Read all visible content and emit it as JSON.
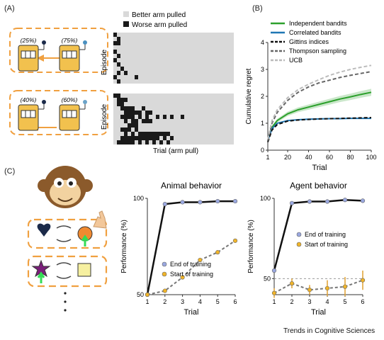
{
  "panels": {
    "a": {
      "label": "(A)",
      "legend": [
        {
          "label": "Better arm pulled",
          "color": "#d9d9d9"
        },
        {
          "label": "Worse arm pulled",
          "color": "#1a1a1a"
        }
      ],
      "bandit_top": [
        "(25%)",
        "(75%)"
      ],
      "bandit_bottom": [
        "(40%)",
        "(60%)"
      ],
      "ylabel": "Episode",
      "xlabel": "Trial (arm pull)"
    },
    "b": {
      "label": "(B)"
    },
    "c": {
      "label": "(C)"
    }
  },
  "footer": "Trends in Cognitive Sciences",
  "colors": {
    "orange": "#f0a040",
    "green_line": "#2ca02c",
    "blue_line": "#1f77b4",
    "dark_blue": "#1b2a49"
  },
  "chart_data": [
    {
      "id": "regret",
      "type": "line",
      "xlabel": "Trial",
      "ylabel": "Cumulative regret",
      "xlim": [
        1,
        100
      ],
      "ylim": [
        0,
        4
      ],
      "xticks": [
        1,
        20,
        40,
        60,
        80,
        100
      ],
      "yticks": [
        0,
        1,
        2,
        3,
        4
      ],
      "legend_position": "top-left",
      "series": [
        {
          "name": "Independent bandits",
          "color": "#2ca02c",
          "style": "solid",
          "band": true,
          "x": [
            1,
            5,
            10,
            20,
            30,
            40,
            50,
            60,
            70,
            80,
            90,
            100
          ],
          "y": [
            0.35,
            0.85,
            1.1,
            1.35,
            1.5,
            1.6,
            1.7,
            1.8,
            1.9,
            1.98,
            2.07,
            2.15
          ]
        },
        {
          "name": "Correlated bandits",
          "color": "#1f77b4",
          "style": "solid",
          "band": false,
          "x": [
            1,
            5,
            10,
            20,
            30,
            40,
            50,
            60,
            70,
            80,
            90,
            100
          ],
          "y": [
            0.35,
            0.8,
            1.0,
            1.1,
            1.13,
            1.15,
            1.16,
            1.17,
            1.17,
            1.18,
            1.18,
            1.18
          ]
        },
        {
          "name": "Gittins indices",
          "color": "#111111",
          "style": "dashed",
          "band": false,
          "x": [
            1,
            5,
            10,
            20,
            30,
            40,
            50,
            60,
            70,
            80,
            90,
            100
          ],
          "y": [
            0.3,
            0.75,
            0.95,
            1.08,
            1.12,
            1.14,
            1.16,
            1.17,
            1.18,
            1.19,
            1.2,
            1.21
          ]
        },
        {
          "name": "Thompson sampling",
          "color": "#666666",
          "style": "dashed",
          "band": false,
          "x": [
            1,
            5,
            10,
            20,
            30,
            40,
            50,
            60,
            70,
            80,
            90,
            100
          ],
          "y": [
            0.35,
            1.0,
            1.4,
            1.85,
            2.15,
            2.35,
            2.5,
            2.6,
            2.7,
            2.78,
            2.85,
            2.92
          ]
        },
        {
          "name": "UCB",
          "color": "#bbbbbb",
          "style": "dashed",
          "band": false,
          "x": [
            1,
            5,
            10,
            20,
            30,
            40,
            50,
            60,
            70,
            80,
            90,
            100
          ],
          "y": [
            0.4,
            1.1,
            1.5,
            1.95,
            2.25,
            2.45,
            2.62,
            2.78,
            2.9,
            3.0,
            3.08,
            3.15
          ]
        }
      ]
    },
    {
      "id": "animal",
      "type": "line",
      "title": "Animal behavior",
      "xlabel": "Trial",
      "ylabel": "Performance (%)",
      "xlim": [
        1,
        6
      ],
      "ylim": [
        50,
        100
      ],
      "xticks": [
        1,
        2,
        3,
        4,
        5,
        6
      ],
      "yticks": [
        50,
        100
      ],
      "series": [
        {
          "name": "End of training",
          "color": "#111111",
          "marker": "#9aa8e0",
          "x": [
            1,
            2,
            3,
            4,
            5,
            6
          ],
          "y": [
            50,
            97,
            98,
            98,
            98.5,
            98.5
          ]
        },
        {
          "name": "Start of training",
          "color": "#777777",
          "marker": "#f0b429",
          "dashed": true,
          "x": [
            1,
            2,
            3,
            4,
            5,
            6
          ],
          "y": [
            50,
            52,
            59,
            68,
            72,
            78
          ]
        }
      ]
    },
    {
      "id": "agent",
      "type": "line",
      "title": "Agent behavior",
      "xlabel": "Trial",
      "ylabel": "Performance (%)",
      "xlim": [
        1,
        6
      ],
      "ylim": [
        40,
        100
      ],
      "xticks": [
        1,
        2,
        3,
        4,
        5,
        6
      ],
      "yticks": [
        50,
        100
      ],
      "reference_line": 50,
      "series": [
        {
          "name": "End of training",
          "color": "#111111",
          "marker": "#9aa8e0",
          "x": [
            1,
            2,
            3,
            4,
            5,
            6
          ],
          "y": [
            55,
            97,
            98,
            98,
            99,
            98.5
          ]
        },
        {
          "name": "Start of training",
          "color": "#777777",
          "marker": "#f0b429",
          "dashed": true,
          "x": [
            1,
            2,
            3,
            4,
            5,
            6
          ],
          "y": [
            41,
            47,
            43,
            44,
            45,
            49
          ],
          "err": [
            3,
            3,
            3,
            5,
            6,
            6
          ]
        }
      ]
    }
  ]
}
